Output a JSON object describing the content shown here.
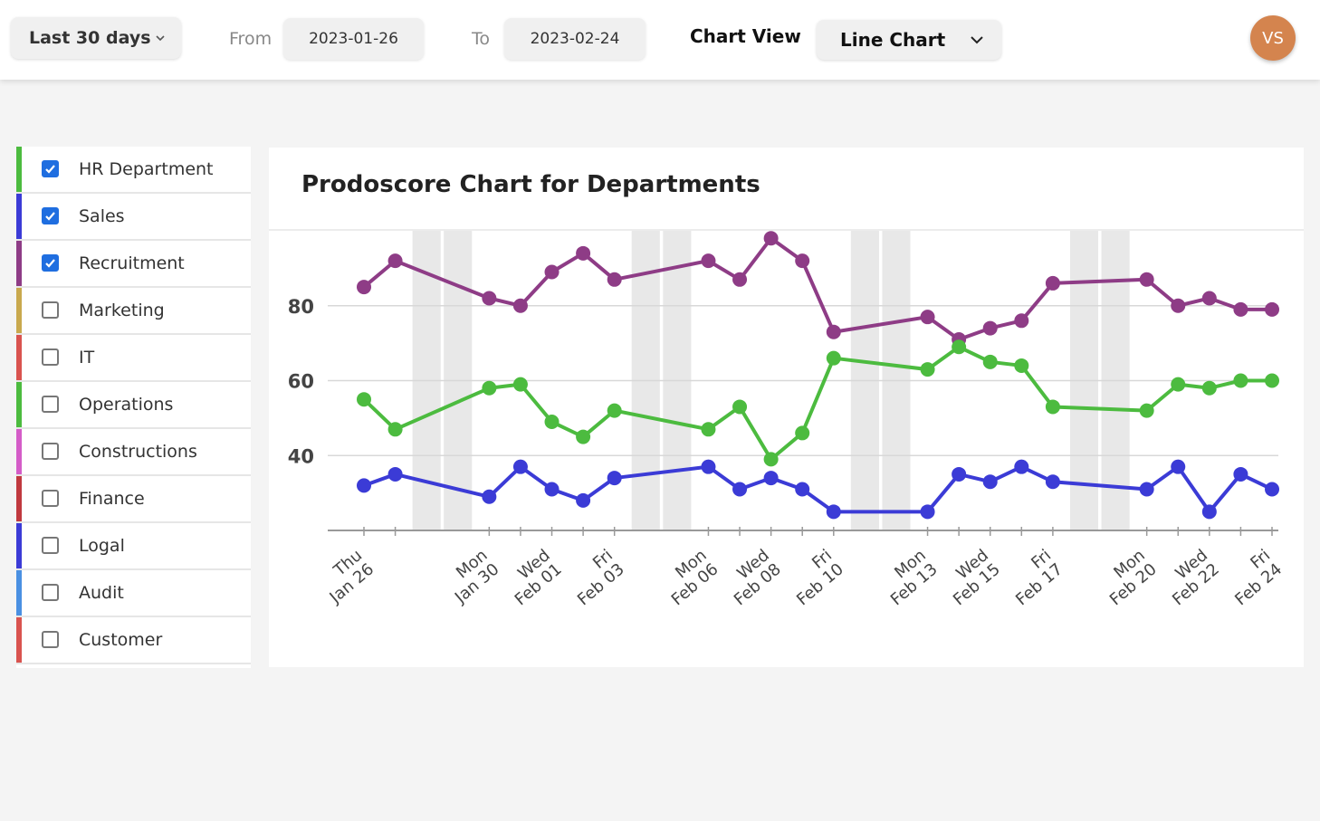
{
  "toolbar": {
    "range_label": "Last 30 days",
    "from_label": "From",
    "from_value": "2023-01-26",
    "to_label": "To",
    "to_value": "2023-02-24",
    "chart_view_label": "Chart View",
    "chart_view_value": "Line Chart",
    "avatar_initials": "VS",
    "avatar_color": "#d4844e"
  },
  "departments": [
    {
      "label": "HR Department",
      "color": "#4cbb3f",
      "checked": true
    },
    {
      "label": "Sales",
      "color": "#3b3bd6",
      "checked": true
    },
    {
      "label": "Recruitment",
      "color": "#8e3c86",
      "checked": true
    },
    {
      "label": "Marketing",
      "color": "#c9a94e",
      "checked": false
    },
    {
      "label": "IT",
      "color": "#d9534f",
      "checked": false
    },
    {
      "label": "Operations",
      "color": "#4cbb3f",
      "checked": false
    },
    {
      "label": "Constructions",
      "color": "#d45cc8",
      "checked": false
    },
    {
      "label": "Finance",
      "color": "#c0393f",
      "checked": false
    },
    {
      "label": "Logal",
      "color": "#3b3bd6",
      "checked": false
    },
    {
      "label": "Audit",
      "color": "#4a90e2",
      "checked": false
    },
    {
      "label": "Customer",
      "color": "#d9534f",
      "checked": false
    }
  ],
  "chart_data": {
    "type": "line",
    "title": "Prodoscore Chart for Departments",
    "xlabel": "",
    "ylabel": "",
    "ylim": [
      20,
      100
    ],
    "yticks": [
      40,
      60,
      80
    ],
    "x": [
      "2023-01-26",
      "2023-01-27",
      "2023-01-30",
      "2023-01-31",
      "2023-02-01",
      "2023-02-02",
      "2023-02-03",
      "2023-02-06",
      "2023-02-07",
      "2023-02-08",
      "2023-02-09",
      "2023-02-10",
      "2023-02-13",
      "2023-02-14",
      "2023-02-15",
      "2023-02-16",
      "2023-02-17",
      "2023-02-20",
      "2023-02-21",
      "2023-02-22",
      "2023-02-23",
      "2023-02-24"
    ],
    "tick_labels": [
      {
        "date": "2023-01-26",
        "day": "Thu",
        "date_label": "Jan 26"
      },
      {
        "date": "2023-01-30",
        "day": "Mon",
        "date_label": "Jan 30"
      },
      {
        "date": "2023-02-01",
        "day": "Wed",
        "date_label": "Feb 01"
      },
      {
        "date": "2023-02-03",
        "day": "Fri",
        "date_label": "Feb 03"
      },
      {
        "date": "2023-02-06",
        "day": "Mon",
        "date_label": "Feb 06"
      },
      {
        "date": "2023-02-08",
        "day": "Wed",
        "date_label": "Feb 08"
      },
      {
        "date": "2023-02-10",
        "day": "Fri",
        "date_label": "Feb 10"
      },
      {
        "date": "2023-02-13",
        "day": "Mon",
        "date_label": "Feb 13"
      },
      {
        "date": "2023-02-15",
        "day": "Wed",
        "date_label": "Feb 15"
      },
      {
        "date": "2023-02-17",
        "day": "Fri",
        "date_label": "Feb 17"
      },
      {
        "date": "2023-02-20",
        "day": "Mon",
        "date_label": "Feb 20"
      },
      {
        "date": "2023-02-22",
        "day": "Wed",
        "date_label": "Feb 22"
      },
      {
        "date": "2023-02-24",
        "day": "Fri",
        "date_label": "Feb 24"
      }
    ],
    "weekend_shading": [
      [
        "2023-01-28",
        "2023-01-29"
      ],
      [
        "2023-02-04",
        "2023-02-05"
      ],
      [
        "2023-02-11",
        "2023-02-12"
      ],
      [
        "2023-02-18",
        "2023-02-19"
      ]
    ],
    "grid": true,
    "series": [
      {
        "name": "Recruitment",
        "color": "#8e3c86",
        "values": [
          85,
          92,
          82,
          80,
          89,
          94,
          87,
          92,
          87,
          98,
          92,
          73,
          77,
          71,
          74,
          76,
          86,
          87,
          80,
          82,
          79,
          79
        ]
      },
      {
        "name": "HR Department",
        "color": "#4cbb3f",
        "values": [
          55,
          47,
          58,
          59,
          49,
          45,
          52,
          47,
          53,
          39,
          46,
          66,
          63,
          69,
          65,
          64,
          53,
          52,
          59,
          58,
          60,
          60
        ]
      },
      {
        "name": "Sales",
        "color": "#3b3bd6",
        "values": [
          32,
          35,
          29,
          37,
          31,
          28,
          34,
          37,
          31,
          34,
          31,
          25,
          25,
          35,
          33,
          37,
          33,
          31,
          37,
          25,
          35,
          31
        ]
      }
    ]
  }
}
